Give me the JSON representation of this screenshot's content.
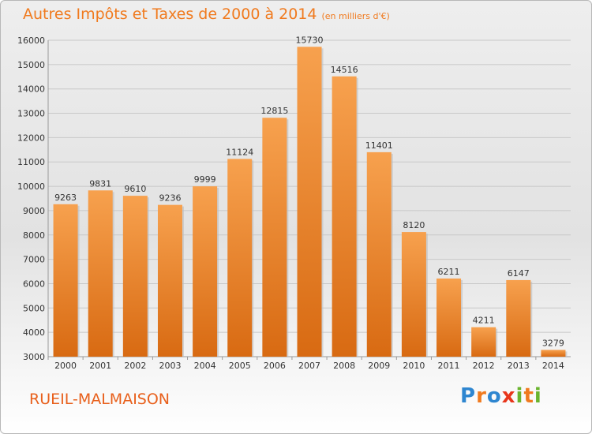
{
  "header": {
    "title": "Autres Impôts et Taxes de 2000 à 2014",
    "unit": "(en milliers d'€)"
  },
  "footer": {
    "city": "RUEIL-MALMAISON",
    "logo": "Proxiti"
  },
  "colors": {
    "bar_light": "#f7a14e",
    "bar_dark": "#d86a12",
    "title": "#f07a1e",
    "city": "#e8601c",
    "grid": "#c8c8c8",
    "logo_letters": [
      "#2e86d0",
      "#f07a1e",
      "#2e86d0",
      "#e8361c",
      "#6ab42e",
      "#f07a1e",
      "#6ab42e"
    ]
  },
  "chart_data": {
    "type": "bar",
    "title": "Autres Impôts et Taxes de 2000 à 2014",
    "subtitle": "(en milliers d'€)",
    "xlabel": "",
    "ylabel": "",
    "categories": [
      "2000",
      "2001",
      "2002",
      "2003",
      "2004",
      "2005",
      "2006",
      "2007",
      "2008",
      "2009",
      "2010",
      "2011",
      "2012",
      "2013",
      "2014"
    ],
    "values": [
      9263,
      9831,
      9610,
      9236,
      9999,
      11124,
      12815,
      15730,
      14516,
      11401,
      8120,
      6211,
      4211,
      6147,
      3279
    ],
    "ylim": [
      3000,
      16000
    ],
    "yticks": [
      3000,
      4000,
      5000,
      6000,
      7000,
      8000,
      9000,
      10000,
      11000,
      12000,
      13000,
      14000,
      15000,
      16000
    ],
    "grid": true,
    "legend": "none"
  }
}
